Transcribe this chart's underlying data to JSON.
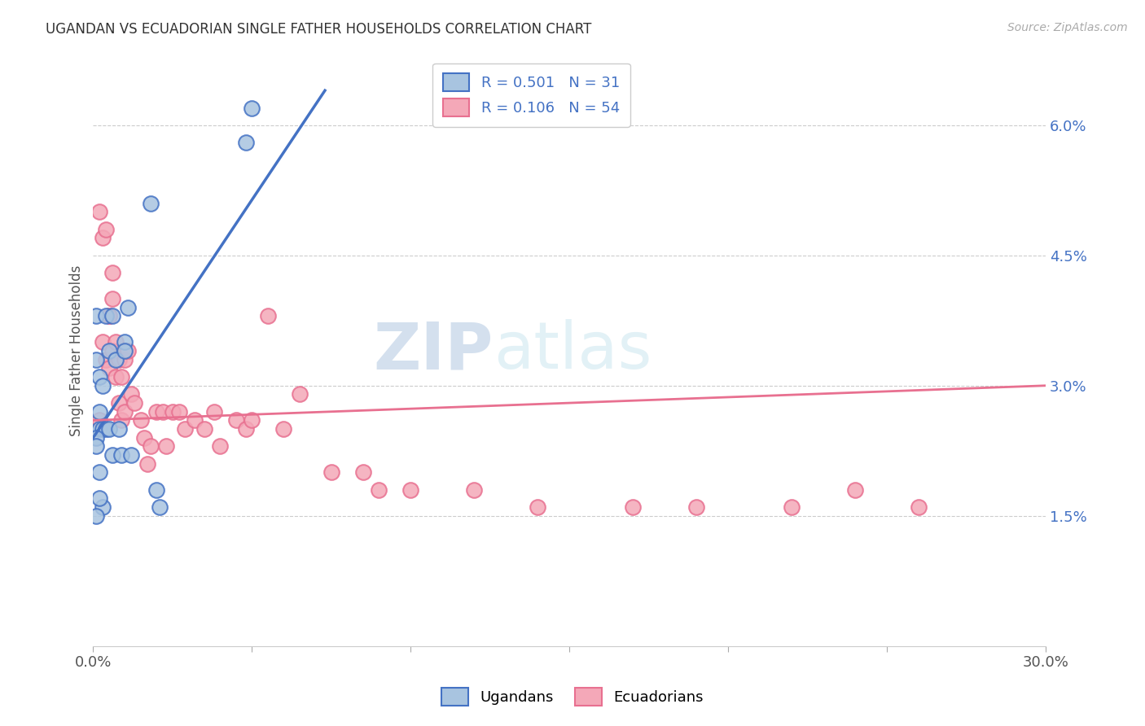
{
  "title": "UGANDAN VS ECUADORIAN SINGLE FATHER HOUSEHOLDS CORRELATION CHART",
  "source": "Source: ZipAtlas.com",
  "ylabel": "Single Father Households",
  "yticks": [
    "1.5%",
    "3.0%",
    "4.5%",
    "6.0%"
  ],
  "ytick_vals": [
    0.015,
    0.03,
    0.045,
    0.06
  ],
  "xlim": [
    0.0,
    0.3
  ],
  "ylim": [
    0.0,
    0.068
  ],
  "ugandan_color": "#a8c4e0",
  "ecuadorian_color": "#f4a8b8",
  "ugandan_line_color": "#4472c4",
  "ecuadorian_line_color": "#e87090",
  "legend_R1": "0.501",
  "legend_N1": "31",
  "legend_R2": "0.106",
  "legend_N2": "54",
  "watermark_zip": "ZIP",
  "watermark_atlas": "atlas",
  "ugandan_x": [
    0.001,
    0.001,
    0.002,
    0.002,
    0.002,
    0.003,
    0.003,
    0.004,
    0.004,
    0.005,
    0.005,
    0.006,
    0.006,
    0.007,
    0.008,
    0.009,
    0.01,
    0.01,
    0.011,
    0.012,
    0.018,
    0.02,
    0.021,
    0.048,
    0.05,
    0.001,
    0.002,
    0.003,
    0.001,
    0.002,
    0.001
  ],
  "ugandan_y": [
    0.038,
    0.033,
    0.031,
    0.027,
    0.025,
    0.03,
    0.025,
    0.038,
    0.025,
    0.034,
    0.025,
    0.038,
    0.022,
    0.033,
    0.025,
    0.022,
    0.035,
    0.034,
    0.039,
    0.022,
    0.051,
    0.018,
    0.016,
    0.058,
    0.062,
    0.024,
    0.02,
    0.016,
    0.015,
    0.017,
    0.023
  ],
  "ecuadorian_x": [
    0.002,
    0.003,
    0.004,
    0.005,
    0.005,
    0.006,
    0.006,
    0.007,
    0.007,
    0.008,
    0.008,
    0.009,
    0.009,
    0.01,
    0.01,
    0.011,
    0.012,
    0.013,
    0.015,
    0.016,
    0.017,
    0.018,
    0.02,
    0.022,
    0.023,
    0.025,
    0.027,
    0.029,
    0.032,
    0.035,
    0.038,
    0.04,
    0.045,
    0.048,
    0.05,
    0.055,
    0.06,
    0.065,
    0.075,
    0.085,
    0.09,
    0.1,
    0.12,
    0.14,
    0.17,
    0.19,
    0.22,
    0.24,
    0.26,
    0.002,
    0.003,
    0.004,
    0.005,
    0.006
  ],
  "ecuadorian_y": [
    0.026,
    0.035,
    0.033,
    0.038,
    0.032,
    0.04,
    0.034,
    0.035,
    0.031,
    0.033,
    0.028,
    0.031,
    0.026,
    0.033,
    0.027,
    0.034,
    0.029,
    0.028,
    0.026,
    0.024,
    0.021,
    0.023,
    0.027,
    0.027,
    0.023,
    0.027,
    0.027,
    0.025,
    0.026,
    0.025,
    0.027,
    0.023,
    0.026,
    0.025,
    0.026,
    0.038,
    0.025,
    0.029,
    0.02,
    0.02,
    0.018,
    0.018,
    0.018,
    0.016,
    0.016,
    0.016,
    0.016,
    0.018,
    0.016,
    0.05,
    0.047,
    0.048,
    0.038,
    0.043
  ],
  "background_color": "#ffffff",
  "ug_line_x": [
    0.0,
    0.073
  ],
  "ug_line_y": [
    0.024,
    0.064
  ],
  "ec_line_x": [
    0.0,
    0.3
  ],
  "ec_line_y": [
    0.026,
    0.03
  ]
}
